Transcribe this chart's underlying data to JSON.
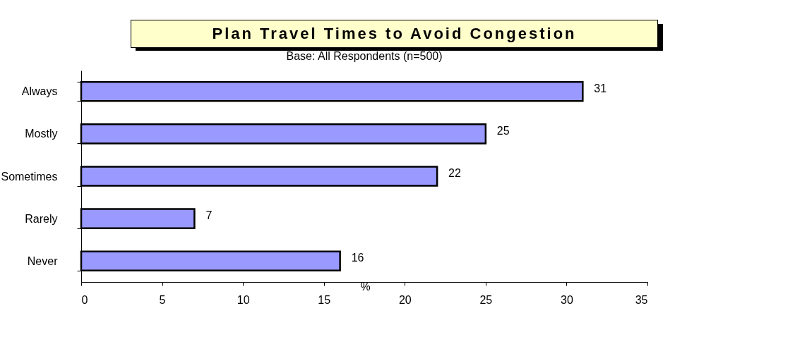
{
  "chart_data": {
    "type": "bar",
    "orientation": "horizontal",
    "title": "Plan Travel Times to Avoid Congestion",
    "subtitle": "Base: All Respondents (n=500)",
    "xlabel": "%",
    "categories": [
      "Always",
      "Mostly",
      "Sometimes",
      "Rarely",
      "Never"
    ],
    "values": [
      31,
      25,
      22,
      7,
      16
    ],
    "color": "#9999ff",
    "data_labels": true,
    "xlim": [
      0,
      35
    ],
    "xticks": [
      0,
      5,
      10,
      15,
      20,
      25,
      30,
      35
    ],
    "grid": false
  }
}
